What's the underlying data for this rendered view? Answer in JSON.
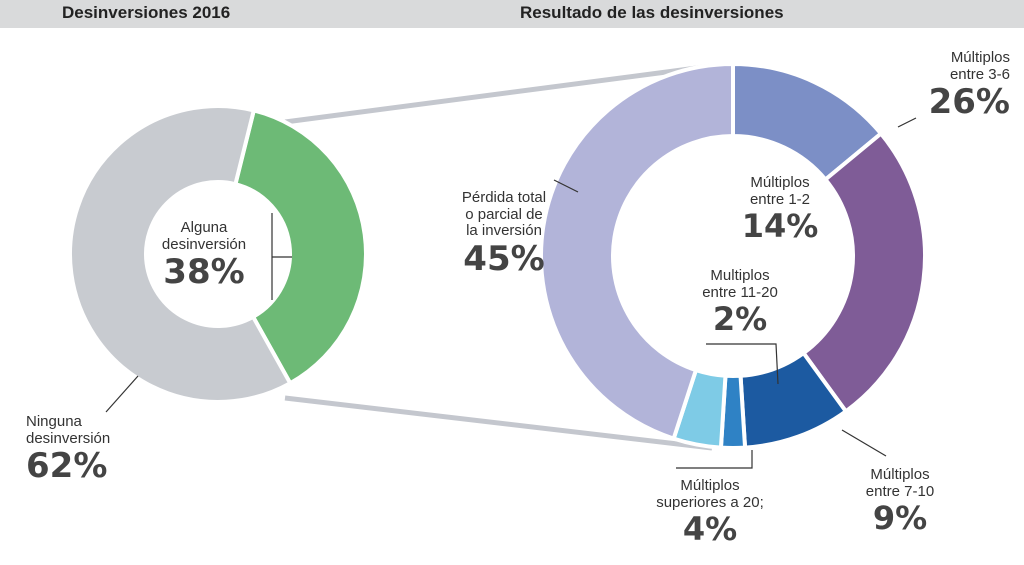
{
  "header": {
    "left_title": "Desinversiones 2016",
    "right_title": "Resultado de las desinversiones"
  },
  "colors": {
    "header_bg": "#d9dadb",
    "alguna": "#6dba76",
    "ninguna": "#c8cbd0",
    "perdida": "#b2b4d9",
    "m1_2": "#7c8fc6",
    "m3_6": "#7f5c97",
    "m7_10": "#1c5aa1",
    "m11_20": "#2f82c5",
    "superiores": "#7ecbe6",
    "connector": "#c4c7ce"
  },
  "chart_data": [
    {
      "type": "pie",
      "variant": "donut",
      "title": "Desinversiones 2016",
      "slices": [
        {
          "label": "Alguna desinversión",
          "value": 38,
          "display": "38%"
        },
        {
          "label": "Ninguna desinversión",
          "value": 62,
          "display": "62%"
        }
      ]
    },
    {
      "type": "pie",
      "variant": "donut",
      "title": "Resultado de las desinversiones",
      "slices": [
        {
          "label": "Múltiplos entre 1-2",
          "value": 14,
          "display": "14%"
        },
        {
          "label": "Múltiplos entre 3-6",
          "value": 26,
          "display": "26%"
        },
        {
          "label": "Múltiplos entre 7-10",
          "value": 9,
          "display": "9%"
        },
        {
          "label": "Multiplos entre 11-20",
          "value": 2,
          "display": "2%"
        },
        {
          "label": "Múltiplos superiores a 20;",
          "value": 4,
          "display": "4%"
        },
        {
          "label": "Pérdida total o parcial de la inversión",
          "value": 45,
          "display": "45%"
        }
      ]
    }
  ],
  "labels": {
    "alguna": {
      "line1": "Alguna",
      "line2": "desinversión",
      "pct": "38%"
    },
    "ninguna": {
      "line1": "Ninguna",
      "line2": "desinversión",
      "pct": "62%"
    },
    "perdida": {
      "line1": "Pérdida total",
      "line2": "o parcial de",
      "line3": "la inversión",
      "pct": "45%"
    },
    "m1_2": {
      "line1": "Múltiplos",
      "line2": "entre 1-2",
      "pct": "14%"
    },
    "m3_6": {
      "line1": "Múltiplos",
      "line2": "entre 3-6",
      "pct": "26%"
    },
    "m11_20": {
      "line1": "Multiplos",
      "line2": "entre 11-20",
      "pct": "2%"
    },
    "m7_10": {
      "line1": "Múltiplos",
      "line2": "entre 7-10",
      "pct": "9%"
    },
    "superiores": {
      "line1": "Múltiplos",
      "line2": "superiores a 20;",
      "pct": "4%"
    }
  }
}
